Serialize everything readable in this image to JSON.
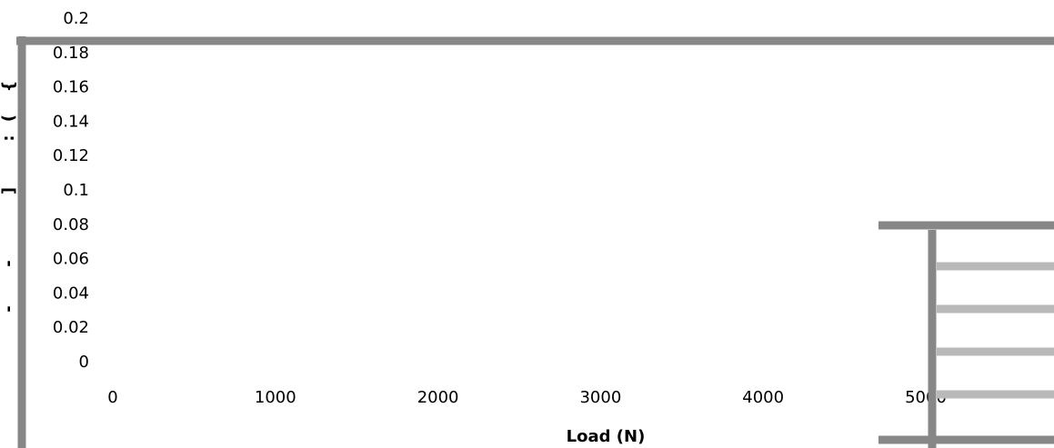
{
  "chart_data": {
    "type": "line",
    "title": "",
    "xlabel": "Load (N)",
    "ylabel": "",
    "xlim": [
      0,
      5000
    ],
    "ylim": [
      0,
      0.2
    ],
    "x_ticks": [
      "0",
      "1000",
      "2000",
      "3000",
      "4000",
      "5000"
    ],
    "y_ticks": [
      "0",
      "0.02",
      "0.04",
      "0.06",
      "0.08",
      "0.1",
      "0.12",
      "0.14",
      "0.16",
      "0.18",
      "0.2"
    ],
    "series": [],
    "grid": false,
    "colors": {
      "frame": "#878787",
      "legend_lines": "#b9b9b9",
      "text": "#000000"
    }
  }
}
